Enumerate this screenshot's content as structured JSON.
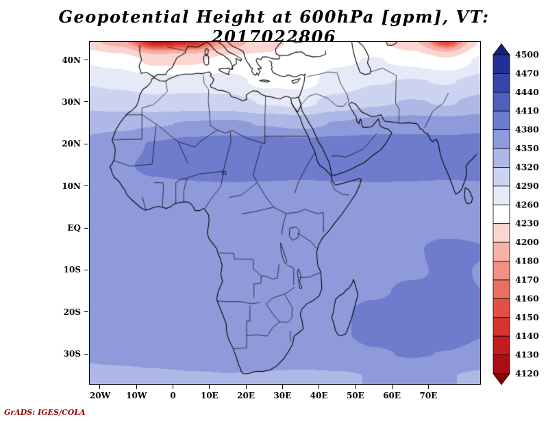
{
  "title": "Geopotential Height at 600hPa [gpm], VT: 2017022806",
  "credit": "GrADS: IGES/COLA",
  "chart_data": {
    "type": "heatmap",
    "subtype": "filled-contour-map",
    "variable": "Geopotential Height",
    "pressure_level": "600hPa",
    "units": "gpm",
    "valid_time": "2017022806",
    "title": "Geopotential Height at 600hPa [gpm], VT: 2017022806",
    "extent": {
      "lon_min": -23,
      "lon_max": 84,
      "lat_min": -37,
      "lat_max": 44.5
    },
    "x_ticks": [
      {
        "value": -20,
        "label": "20W"
      },
      {
        "value": -10,
        "label": "10W"
      },
      {
        "value": 0,
        "label": "0"
      },
      {
        "value": 10,
        "label": "10E"
      },
      {
        "value": 20,
        "label": "20E"
      },
      {
        "value": 30,
        "label": "30E"
      },
      {
        "value": 40,
        "label": "40E"
      },
      {
        "value": 50,
        "label": "50E"
      },
      {
        "value": 60,
        "label": "60E"
      },
      {
        "value": 70,
        "label": "70E"
      }
    ],
    "y_ticks": [
      {
        "value": 40,
        "label": "40N"
      },
      {
        "value": 30,
        "label": "30N"
      },
      {
        "value": 20,
        "label": "20N"
      },
      {
        "value": 10,
        "label": "10N"
      },
      {
        "value": 0,
        "label": "EQ"
      },
      {
        "value": -10,
        "label": "10S"
      },
      {
        "value": -20,
        "label": "20S"
      },
      {
        "value": -30,
        "label": "30S"
      }
    ],
    "levels": [
      4120,
      4130,
      4140,
      4150,
      4160,
      4170,
      4180,
      4200,
      4230,
      4260,
      4290,
      4320,
      4350,
      4380,
      4410,
      4440,
      4470,
      4500
    ],
    "colorbar_labels": [
      "4500",
      "4470",
      "4440",
      "4410",
      "4380",
      "4350",
      "4320",
      "4290",
      "4260",
      "4230",
      "4200",
      "4180",
      "4170",
      "4160",
      "4150",
      "4140",
      "4130",
      "4120"
    ],
    "palette": {
      "below": "#8b0000",
      "bins": [
        "#aa0e12",
        "#c21c1f",
        "#d6342c",
        "#e25045",
        "#ea6f62",
        "#f19084",
        "#f6b0a7",
        "#fbd5cf",
        "#ffffff",
        "#e6eaf8",
        "#ccd3f0",
        "#aeb8e6",
        "#8e9ada",
        "#6e7ccd",
        "#4f5fc0",
        "#3645ad",
        "#222f96"
      ],
      "above": "#141f7a"
    },
    "legend_position": "right",
    "grid": {
      "lons": [
        -25,
        -15,
        -5,
        5,
        15,
        25,
        35,
        45,
        55,
        65,
        75,
        85
      ],
      "lats": [
        45,
        40,
        35,
        30,
        25,
        20,
        15,
        10,
        5,
        0,
        -5,
        -10,
        -15,
        -20,
        -25,
        -30,
        -35
      ],
      "values": [
        [
          4210,
          4185,
          4130,
          4135,
          4180,
          4215,
          4240,
          4242,
          4235,
          4205,
          4145,
          4235
        ],
        [
          4258,
          4248,
          4222,
          4225,
          4242,
          4238,
          4248,
          4256,
          4262,
          4252,
          4235,
          4268
        ],
        [
          4288,
          4282,
          4272,
          4274,
          4270,
          4252,
          4250,
          4272,
          4288,
          4292,
          4288,
          4302
        ],
        [
          4312,
          4306,
          4300,
          4303,
          4302,
          4288,
          4282,
          4302,
          4316,
          4322,
          4318,
          4330
        ],
        [
          4338,
          4342,
          4348,
          4352,
          4355,
          4348,
          4342,
          4352,
          4360,
          4365,
          4362,
          4368
        ],
        [
          4358,
          4368,
          4383,
          4393,
          4398,
          4396,
          4393,
          4396,
          4398,
          4396,
          4394,
          4396
        ],
        [
          4366,
          4376,
          4386,
          4394,
          4397,
          4395,
          4393,
          4395,
          4397,
          4395,
          4393,
          4395
        ],
        [
          4368,
          4371,
          4375,
          4377,
          4378,
          4377,
          4376,
          4377,
          4378,
          4377,
          4376,
          4377
        ],
        [
          4369,
          4371,
          4373,
          4375,
          4376,
          4375,
          4374,
          4375,
          4376,
          4375,
          4374,
          4375
        ],
        [
          4369,
          4371,
          4372,
          4374,
          4374,
          4373,
          4371,
          4373,
          4375,
          4375,
          4374,
          4375
        ],
        [
          4369,
          4370,
          4371,
          4372,
          4373,
          4372,
          4370,
          4372,
          4375,
          4377,
          4387,
          4381
        ],
        [
          4368,
          4369,
          4370,
          4371,
          4372,
          4371,
          4369,
          4371,
          4374,
          4377,
          4383,
          4379
        ],
        [
          4369,
          4371,
          4373,
          4374,
          4375,
          4373,
          4371,
          4373,
          4377,
          4384,
          4382,
          4380
        ],
        [
          4371,
          4373,
          4375,
          4377,
          4377,
          4375,
          4373,
          4377,
          4386,
          4394,
          4388,
          4382
        ],
        [
          4369,
          4372,
          4375,
          4377,
          4377,
          4375,
          4373,
          4377,
          4387,
          4395,
          4389,
          4381
        ],
        [
          4362,
          4365,
          4369,
          4372,
          4373,
          4371,
          4369,
          4371,
          4377,
          4382,
          4379,
          4373
        ],
        [
          4330,
          4337,
          4343,
          4347,
          4349,
          4347,
          4345,
          4347,
          4351,
          4353,
          4351,
          4345
        ]
      ]
    }
  }
}
